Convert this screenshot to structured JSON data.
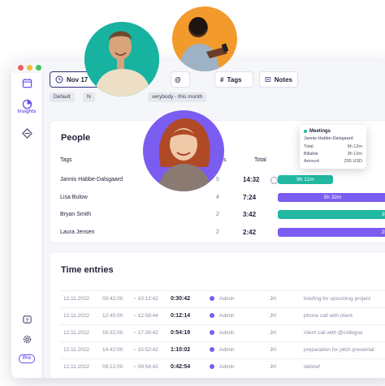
{
  "window": {
    "dot_colors": [
      "#f0605a",
      "#f7bd3d",
      "#46c55a"
    ]
  },
  "sidebar": {
    "items": [
      {
        "icon": "calendar-icon",
        "label": ""
      },
      {
        "icon": "pie-chart-icon",
        "label": "Insights"
      },
      {
        "icon": "diamond-icon",
        "label": ""
      }
    ],
    "bottom": {
      "help_icon": "help-icon",
      "settings_icon": "gear-icon",
      "badge": "Pro"
    }
  },
  "filters": {
    "date_label": "Nov 17",
    "tags_label": "Tags",
    "notes_label": "Notes"
  },
  "chips": {
    "default_label": "Default",
    "second_label": "N",
    "scope_label": "verybody - this month"
  },
  "people": {
    "title": "People",
    "col_tags": "Tags",
    "col_tasks": "s",
    "col_total": "Total",
    "rows": [
      {
        "name": "Jannis Habbe-Dalsgaard",
        "count": "5",
        "total": "14:32",
        "bar_label": "9h 12m",
        "bar_fraction": 0.45,
        "bar_color": "#22b8a2"
      },
      {
        "name": "Lisa Bulow",
        "count": "4",
        "total": "7:24",
        "bar_label": "5h 32m",
        "bar_fraction": 0.9,
        "bar_color": "#7b5cf0"
      },
      {
        "name": "Bryan Smith",
        "count": "2",
        "total": "3:42",
        "bar_label": "3h 42",
        "bar_fraction": 1.0,
        "bar_color": "#22b8a2"
      },
      {
        "name": "Laura Jensen",
        "count": "2",
        "total": "2:42",
        "bar_label": "2h 42",
        "bar_fraction": 1.0,
        "bar_color": "#7b5cf0"
      }
    ]
  },
  "tooltip": {
    "title": "Meetings",
    "person": "Jannis Habbe-Dalsgaard",
    "rows": [
      {
        "label": "Total",
        "value": "9h 12m"
      },
      {
        "label": "Billable",
        "value": "3h 12m"
      },
      {
        "label": "Amount",
        "value": "255 USD"
      }
    ]
  },
  "time_entries": {
    "title": "Time entries",
    "rows": [
      {
        "date": "12.11.2022",
        "start": "09:42:00",
        "end": "~ 10:12:42",
        "duration": "0:30:42",
        "user": "Admin",
        "initials": "JH",
        "note": "briefing for upcoming project"
      },
      {
        "date": "12.11.2022",
        "start": "12:45:00",
        "end": "~ 12:58:44",
        "duration": "0:12:14",
        "user": "Admin",
        "initials": "JH",
        "note": "phone call with client"
      },
      {
        "date": "12.11.2022",
        "start": "16:32:00",
        "end": "~ 17:26:42",
        "duration": "0:54:19",
        "user": "Admin",
        "initials": "JH",
        "note": "client call with @collegue"
      },
      {
        "date": "12.11.2022",
        "start": "14:42:00",
        "end": "~ 15:52:42",
        "duration": "1:10:02",
        "user": "Admin",
        "initials": "JH",
        "note": "preparation for pitch presentat"
      },
      {
        "date": "12.11.2022",
        "start": "09:12:00",
        "end": "~ 09:54:42",
        "duration": "0:42:54",
        "user": "Admin",
        "initials": "JH",
        "note": "debrief"
      }
    ]
  },
  "avatars": [
    {
      "name": "man-smiling",
      "bg": "#17b3a0"
    },
    {
      "name": "man-phone",
      "bg": "#f39a2c"
    },
    {
      "name": "woman-red-hair",
      "bg": "#7b5cf0"
    }
  ]
}
